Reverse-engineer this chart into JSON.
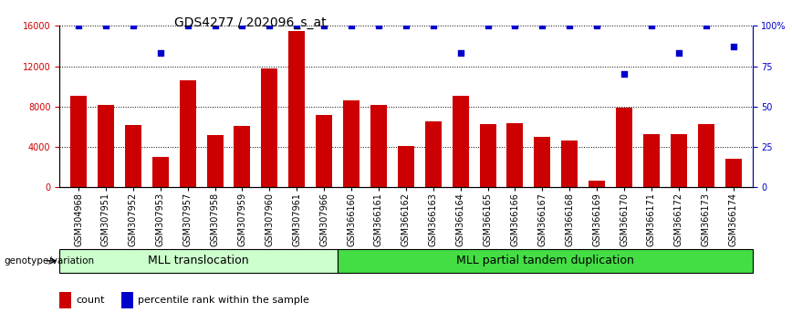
{
  "title": "GDS4277 / 202096_s_at",
  "categories": [
    "GSM304968",
    "GSM307951",
    "GSM307952",
    "GSM307953",
    "GSM307957",
    "GSM307958",
    "GSM307959",
    "GSM307960",
    "GSM307961",
    "GSM307966",
    "GSM366160",
    "GSM366161",
    "GSM366162",
    "GSM366163",
    "GSM366164",
    "GSM366165",
    "GSM366166",
    "GSM366167",
    "GSM366168",
    "GSM366169",
    "GSM366170",
    "GSM366171",
    "GSM366172",
    "GSM366173",
    "GSM366174"
  ],
  "bar_values": [
    9100,
    8200,
    6200,
    3000,
    10600,
    5200,
    6100,
    11800,
    15500,
    7200,
    8600,
    8200,
    4100,
    6500,
    9100,
    6300,
    6400,
    5000,
    4600,
    700,
    7900,
    5300,
    5300,
    6300,
    2800
  ],
  "percentile_values": [
    100,
    100,
    100,
    83,
    100,
    100,
    100,
    100,
    100,
    100,
    100,
    100,
    100,
    100,
    83,
    100,
    100,
    100,
    100,
    100,
    70,
    100,
    83,
    100,
    87
  ],
  "bar_color": "#cc0000",
  "dot_color": "#0000cc",
  "ylim_left": [
    0,
    16000
  ],
  "ylim_right": [
    0,
    100
  ],
  "yticks_left": [
    0,
    4000,
    8000,
    12000,
    16000
  ],
  "yticks_right": [
    0,
    25,
    50,
    75,
    100
  ],
  "group1_label": "MLL translocation",
  "group1_count": 10,
  "group2_label": "MLL partial tandem duplication",
  "group1_color": "#ccffcc",
  "group2_color": "#44dd44",
  "genotype_label": "genotype/variation",
  "legend_count": "count",
  "legend_percentile": "percentile rank within the sample",
  "title_fontsize": 10,
  "tick_fontsize": 7,
  "group_fontsize": 9,
  "legend_fontsize": 8
}
